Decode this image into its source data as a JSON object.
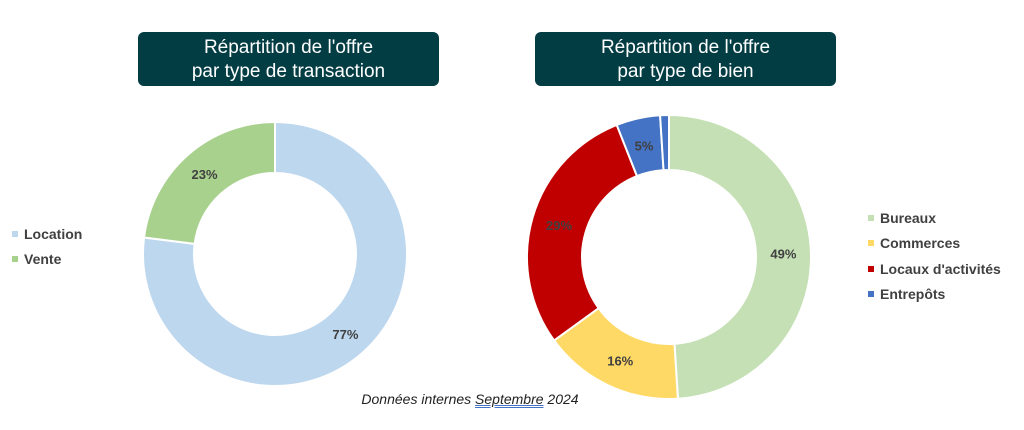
{
  "titles": {
    "left": [
      "Répartition de l'offre",
      "par type de transaction"
    ],
    "right": [
      "Répartition de l'offre",
      "par type de bien"
    ]
  },
  "footnote": {
    "before": "Données internes ",
    "month": "Septembre",
    "after": " 2024"
  },
  "chart_data": [
    {
      "type": "pie",
      "donut": true,
      "title": "Répartition de l'offre par type de transaction",
      "categories": [
        "Location",
        "Vente"
      ],
      "values": [
        77,
        23
      ],
      "labels": [
        "77%",
        "23%"
      ],
      "colors": [
        "#bdd7ee",
        "#a9d18e"
      ],
      "legend_position": "left"
    },
    {
      "type": "pie",
      "donut": true,
      "title": "Répartition de l'offre par type de bien",
      "categories": [
        "Bureaux",
        "Commerces",
        "Locaux d'activités",
        "Entrepôts"
      ],
      "values": [
        49,
        16,
        29,
        5,
        1
      ],
      "slice_categories": [
        "Bureaux",
        "Commerces",
        "Locaux d'activités",
        "Entrepôts",
        ""
      ],
      "labels": [
        "49%",
        "16%",
        "29%",
        "5%",
        ""
      ],
      "colors": [
        "#c5e0b4",
        "#ffd966",
        "#c00000",
        "#4472c4",
        "#4472c4"
      ],
      "legend_position": "right"
    }
  ]
}
